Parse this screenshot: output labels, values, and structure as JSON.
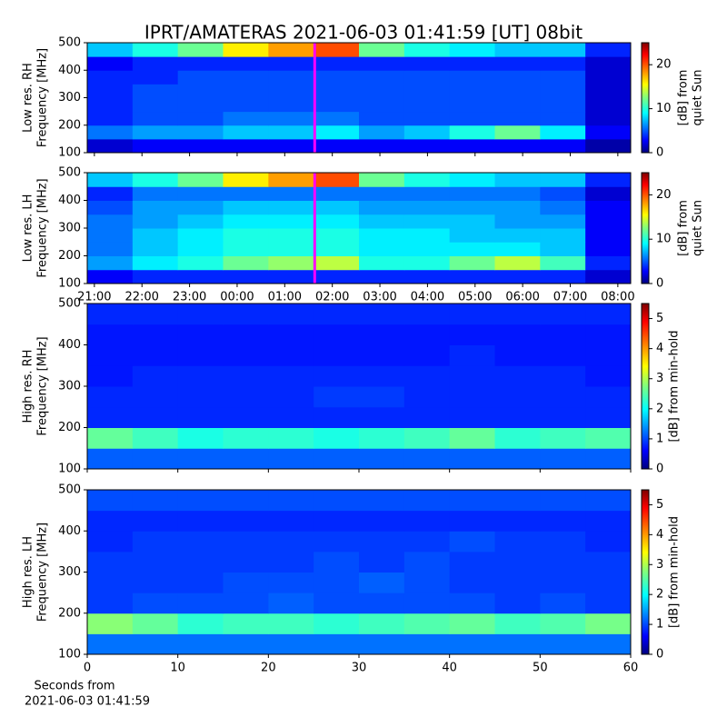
{
  "chart_data": [
    {
      "type": "heatmap",
      "title": "IPRT/AMATERAS 2021-06-03 01:41:59 [UT]   08bit",
      "ylabel": [
        "Low res. RH",
        "Frequency [MHz]"
      ],
      "colorbar_label": [
        "[dB] from",
        "quiet Sun"
      ],
      "colormap": "jet",
      "clim": [
        0,
        25
      ],
      "cticks": [
        0,
        10,
        20
      ],
      "ylim": [
        100,
        500
      ],
      "yticks": [
        100,
        200,
        300,
        400,
        500
      ],
      "xlim": [
        20.85,
        32.27
      ],
      "xticks": [
        {
          "value": 21,
          "label": "21:00"
        },
        {
          "value": 22,
          "label": "22:00"
        },
        {
          "value": 23,
          "label": "23:00"
        },
        {
          "value": 24,
          "label": "00:00"
        },
        {
          "value": 25,
          "label": "01:00"
        },
        {
          "value": 26,
          "label": "02:00"
        },
        {
          "value": 27,
          "label": "03:00"
        },
        {
          "value": 28,
          "label": "04:00"
        },
        {
          "value": 29,
          "label": "05:00"
        },
        {
          "value": 30,
          "label": "06:00"
        },
        {
          "value": 31,
          "label": "07:00"
        },
        {
          "value": 32,
          "label": "08:00"
        }
      ],
      "xticklabels": false,
      "marker_x": 25.63,
      "marker_color": "#ff00ff",
      "z": [
        [
          2,
          3,
          3,
          3,
          3,
          3,
          3,
          3,
          3,
          3,
          3,
          1
        ],
        [
          6,
          7,
          7,
          8,
          8,
          9,
          7,
          8,
          10,
          12,
          9,
          3
        ],
        [
          4,
          5,
          5,
          6,
          6,
          6,
          5,
          5,
          5,
          5,
          5,
          2
        ],
        [
          4,
          5,
          5,
          5,
          5,
          5,
          5,
          5,
          5,
          5,
          5,
          2
        ],
        [
          4,
          5,
          5,
          5,
          5,
          5,
          5,
          5,
          5,
          5,
          5,
          2
        ],
        [
          4,
          4,
          5,
          5,
          5,
          5,
          5,
          5,
          5,
          5,
          5,
          2
        ],
        [
          3,
          4,
          4,
          4,
          4,
          4,
          4,
          4,
          4,
          4,
          4,
          2
        ],
        [
          8,
          10,
          12,
          16,
          18,
          20,
          12,
          10,
          9,
          8,
          8,
          4
        ]
      ]
    },
    {
      "type": "heatmap",
      "ylabel": [
        "Low res. LH",
        "Frequency [MHz]"
      ],
      "colorbar_label": [
        "[dB] from",
        "quiet Sun"
      ],
      "colormap": "jet",
      "clim": [
        0,
        25
      ],
      "cticks": [
        0,
        10,
        20
      ],
      "ylim": [
        100,
        500
      ],
      "yticks": [
        100,
        200,
        300,
        400,
        500
      ],
      "xlim": [
        20.85,
        32.27
      ],
      "xticks": [
        {
          "value": 21,
          "label": "21:00"
        },
        {
          "value": 22,
          "label": "22:00"
        },
        {
          "value": 23,
          "label": "23:00"
        },
        {
          "value": 24,
          "label": "00:00"
        },
        {
          "value": 25,
          "label": "01:00"
        },
        {
          "value": 26,
          "label": "02:00"
        },
        {
          "value": 27,
          "label": "03:00"
        },
        {
          "value": 28,
          "label": "04:00"
        },
        {
          "value": 29,
          "label": "05:00"
        },
        {
          "value": 30,
          "label": "06:00"
        },
        {
          "value": 31,
          "label": "07:00"
        },
        {
          "value": 32,
          "label": "08:00"
        }
      ],
      "xticklabels": true,
      "marker_x": 25.63,
      "marker_color": "#ff00ff",
      "z": [
        [
          3,
          4,
          4,
          4,
          4,
          4,
          4,
          4,
          4,
          4,
          4,
          2
        ],
        [
          7,
          9,
          10,
          12,
          13,
          14,
          10,
          10,
          12,
          14,
          11,
          4
        ],
        [
          6,
          8,
          9,
          10,
          10,
          10,
          9,
          9,
          9,
          9,
          8,
          3
        ],
        [
          6,
          8,
          9,
          10,
          10,
          10,
          9,
          9,
          8,
          8,
          8,
          3
        ],
        [
          6,
          7,
          8,
          9,
          9,
          9,
          8,
          8,
          8,
          7,
          7,
          3
        ],
        [
          5,
          7,
          7,
          8,
          8,
          8,
          7,
          7,
          7,
          7,
          6,
          3
        ],
        [
          4,
          6,
          6,
          6,
          6,
          6,
          6,
          6,
          6,
          6,
          5,
          2
        ],
        [
          8,
          10,
          12,
          16,
          18,
          20,
          12,
          10,
          9,
          8,
          8,
          4
        ]
      ]
    },
    {
      "type": "heatmap",
      "ylabel": [
        "High res. RH",
        "Frequency [MHz]"
      ],
      "colorbar_label": [
        "[dB] from min-hold"
      ],
      "colormap": "jet",
      "clim": [
        0,
        5.5
      ],
      "cticks": [
        0,
        1,
        2,
        3,
        4,
        5
      ],
      "ylim": [
        100,
        500
      ],
      "yticks": [
        100,
        200,
        300,
        400,
        500
      ],
      "xlim": [
        0,
        60
      ],
      "xticks": [
        0,
        10,
        20,
        30,
        40,
        50,
        60
      ],
      "xticklabels": false,
      "z": [
        [
          1.2,
          1.2,
          1.2,
          1.2,
          1.2,
          1.2,
          1.2,
          1.2,
          1.2,
          1.2,
          1.2,
          1.2
        ],
        [
          2.6,
          2.4,
          2.2,
          2.3,
          2.3,
          2.2,
          2.3,
          2.4,
          2.6,
          2.3,
          2.4,
          2.5
        ],
        [
          0.9,
          0.9,
          0.9,
          0.9,
          0.9,
          0.9,
          0.9,
          0.9,
          0.9,
          0.9,
          0.9,
          0.9
        ],
        [
          0.9,
          0.9,
          0.9,
          0.9,
          0.9,
          1.0,
          1.0,
          0.9,
          0.9,
          0.9,
          0.9,
          0.9
        ],
        [
          0.8,
          0.9,
          0.9,
          0.9,
          0.9,
          0.9,
          0.9,
          0.9,
          0.9,
          0.9,
          0.9,
          0.8
        ],
        [
          0.8,
          0.8,
          0.8,
          0.8,
          0.8,
          0.8,
          0.8,
          0.8,
          0.9,
          0.8,
          0.8,
          0.8
        ],
        [
          0.8,
          0.8,
          0.8,
          0.8,
          0.8,
          0.8,
          0.8,
          0.8,
          0.8,
          0.8,
          0.8,
          0.8
        ],
        [
          0.9,
          0.9,
          0.9,
          0.9,
          0.9,
          0.9,
          0.9,
          0.9,
          0.9,
          0.9,
          0.9,
          0.9
        ]
      ]
    },
    {
      "type": "heatmap",
      "ylabel": [
        "High res. LH",
        "Frequency [MHz]"
      ],
      "colorbar_label": [
        "[dB] from min-hold"
      ],
      "colormap": "jet",
      "clim": [
        0,
        5.5
      ],
      "cticks": [
        0,
        1,
        2,
        3,
        4,
        5
      ],
      "ylim": [
        100,
        500
      ],
      "yticks": [
        100,
        200,
        300,
        400,
        500
      ],
      "xlim": [
        0,
        60
      ],
      "xticks": [
        0,
        10,
        20,
        30,
        40,
        50,
        60
      ],
      "xticklabels": true,
      "xlabel": [
        "Seconds from",
        "2021-06-03 01:41:59"
      ],
      "z": [
        [
          1.3,
          1.3,
          1.3,
          1.3,
          1.3,
          1.3,
          1.3,
          1.3,
          1.3,
          1.3,
          1.3,
          1.3
        ],
        [
          2.8,
          2.6,
          2.3,
          2.4,
          2.4,
          2.3,
          2.4,
          2.5,
          2.6,
          2.4,
          2.5,
          2.7
        ],
        [
          1.0,
          1.1,
          1.1,
          1.1,
          1.2,
          1.1,
          1.1,
          1.1,
          1.1,
          1.0,
          1.1,
          1.0
        ],
        [
          1.0,
          1.0,
          1.0,
          1.1,
          1.1,
          1.1,
          1.2,
          1.1,
          1.0,
          1.0,
          1.0,
          1.0
        ],
        [
          1.0,
          1.0,
          1.0,
          1.0,
          1.0,
          1.1,
          1.0,
          1.1,
          1.0,
          1.0,
          1.0,
          1.0
        ],
        [
          0.9,
          1.0,
          1.0,
          1.0,
          1.0,
          1.0,
          1.0,
          1.0,
          1.1,
          1.0,
          1.0,
          0.9
        ],
        [
          0.9,
          0.9,
          0.9,
          0.9,
          0.9,
          0.9,
          0.9,
          0.9,
          0.9,
          0.9,
          0.9,
          0.9
        ],
        [
          1.1,
          1.1,
          1.1,
          1.1,
          1.1,
          1.1,
          1.1,
          1.1,
          1.1,
          1.1,
          1.1,
          1.1
        ]
      ]
    }
  ]
}
